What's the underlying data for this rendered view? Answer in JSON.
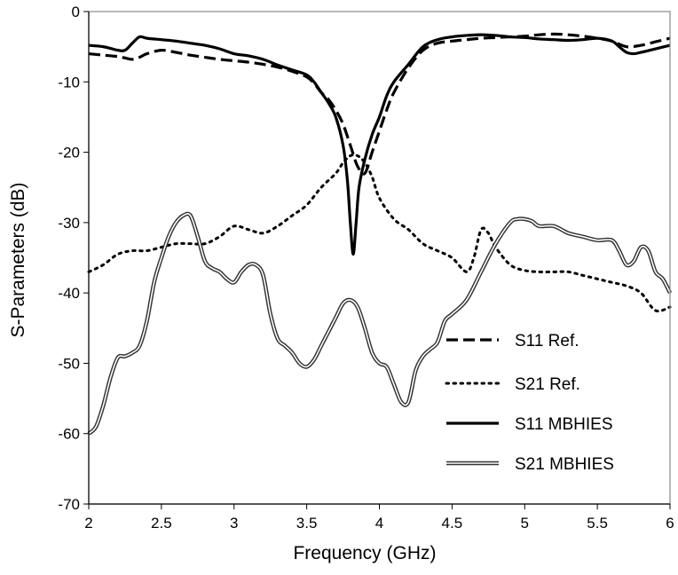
{
  "chart_data": {
    "type": "line",
    "title": "",
    "xlabel": "Frequency (GHz)",
    "ylabel": "S-Parameters (dB)",
    "xlim": [
      2,
      6
    ],
    "ylim": [
      -70,
      0
    ],
    "xticks": [
      2,
      2.5,
      3,
      3.5,
      4,
      4.5,
      5,
      5.5,
      6
    ],
    "xtick_labels": [
      "2",
      "2.5",
      "3",
      "3.5",
      "4",
      "4.5",
      "5",
      "5.5",
      "6"
    ],
    "yticks": [
      0,
      -10,
      -20,
      -30,
      -40,
      -50,
      -60,
      -70
    ],
    "ytick_labels": [
      "0",
      "-10",
      "-20",
      "-30",
      "-40",
      "-50",
      "-60",
      "-70"
    ],
    "grid": false,
    "legend_position": "bottom-right",
    "series": [
      {
        "name": "S11 Ref.",
        "style": "dashed",
        "color": "#000000",
        "x": [
          2.0,
          2.1,
          2.2,
          2.25,
          2.3,
          2.35,
          2.4,
          2.5,
          2.6,
          2.7,
          2.8,
          2.9,
          3.0,
          3.1,
          3.2,
          3.3,
          3.4,
          3.5,
          3.55,
          3.6,
          3.65,
          3.7,
          3.75,
          3.8,
          3.85,
          3.9,
          3.95,
          4.0,
          4.05,
          4.1,
          4.2,
          4.3,
          4.4,
          4.5,
          4.6,
          4.7,
          4.8,
          4.9,
          5.0,
          5.1,
          5.2,
          5.3,
          5.4,
          5.5,
          5.6,
          5.7,
          5.8,
          5.9,
          6.0
        ],
        "y": [
          -6.0,
          -6.2,
          -6.4,
          -6.6,
          -6.8,
          -6.5,
          -6.0,
          -5.5,
          -5.8,
          -6.2,
          -6.5,
          -6.8,
          -7.0,
          -7.2,
          -7.5,
          -7.9,
          -8.5,
          -9.3,
          -10.2,
          -11.5,
          -12.5,
          -14.0,
          -16.0,
          -19.0,
          -22.0,
          -23.0,
          -20.0,
          -17.0,
          -14.0,
          -11.5,
          -8.0,
          -5.5,
          -4.5,
          -4.2,
          -4.0,
          -3.8,
          -3.7,
          -3.6,
          -3.5,
          -3.3,
          -3.2,
          -3.3,
          -3.5,
          -3.8,
          -4.2,
          -5.0,
          -4.8,
          -4.3,
          -3.8
        ]
      },
      {
        "name": "S21 Ref.",
        "style": "dotted",
        "color": "#000000",
        "x": [
          2.0,
          2.1,
          2.2,
          2.3,
          2.4,
          2.5,
          2.6,
          2.7,
          2.8,
          2.9,
          3.0,
          3.1,
          3.2,
          3.3,
          3.4,
          3.5,
          3.6,
          3.7,
          3.75,
          3.8,
          3.85,
          3.9,
          3.95,
          4.0,
          4.1,
          4.2,
          4.3,
          4.4,
          4.5,
          4.6,
          4.65,
          4.7,
          4.75,
          4.8,
          4.9,
          5.0,
          5.1,
          5.2,
          5.3,
          5.4,
          5.5,
          5.6,
          5.7,
          5.8,
          5.9,
          6.0
        ],
        "y": [
          -37.0,
          -36.0,
          -34.5,
          -34.0,
          -34.0,
          -33.5,
          -33.0,
          -33.0,
          -33.0,
          -32.0,
          -30.5,
          -31.0,
          -31.5,
          -30.5,
          -29.0,
          -27.5,
          -25.0,
          -23.0,
          -21.5,
          -20.5,
          -20.5,
          -21.5,
          -23.5,
          -26.5,
          -29.5,
          -31.0,
          -33.0,
          -34.0,
          -35.0,
          -37.0,
          -35.0,
          -31.0,
          -31.5,
          -33.5,
          -36.0,
          -36.8,
          -37.0,
          -37.0,
          -37.0,
          -37.5,
          -38.0,
          -38.5,
          -39.0,
          -40.0,
          -42.5,
          -42.0
        ]
      },
      {
        "name": "S11 MBHIES",
        "style": "solid",
        "color": "#000000",
        "x": [
          2.0,
          2.1,
          2.2,
          2.25,
          2.3,
          2.35,
          2.4,
          2.5,
          2.6,
          2.7,
          2.8,
          2.9,
          3.0,
          3.1,
          3.2,
          3.3,
          3.4,
          3.5,
          3.55,
          3.6,
          3.65,
          3.7,
          3.75,
          3.78,
          3.8,
          3.82,
          3.84,
          3.86,
          3.9,
          3.95,
          4.0,
          4.05,
          4.1,
          4.2,
          4.3,
          4.4,
          4.5,
          4.6,
          4.7,
          4.8,
          4.9,
          5.0,
          5.1,
          5.2,
          5.3,
          5.4,
          5.5,
          5.6,
          5.65,
          5.7,
          5.75,
          5.8,
          5.9,
          6.0
        ],
        "y": [
          -4.8,
          -5.0,
          -5.5,
          -5.5,
          -4.5,
          -3.6,
          -3.8,
          -4.0,
          -4.2,
          -4.5,
          -4.8,
          -5.3,
          -6.0,
          -6.3,
          -6.8,
          -7.6,
          -8.3,
          -9.0,
          -10.0,
          -11.5,
          -13.0,
          -15.0,
          -19.0,
          -24.0,
          -30.0,
          -34.5,
          -30.0,
          -25.0,
          -21.0,
          -17.5,
          -15.0,
          -12.0,
          -10.0,
          -7.5,
          -5.0,
          -4.0,
          -3.6,
          -3.4,
          -3.3,
          -3.4,
          -3.6,
          -3.7,
          -3.9,
          -4.0,
          -4.1,
          -4.0,
          -3.8,
          -4.2,
          -5.0,
          -5.8,
          -6.0,
          -5.8,
          -5.3,
          -4.8
        ]
      },
      {
        "name": "S21 MBHIES",
        "style": "double",
        "color": "#000000",
        "x": [
          2.0,
          2.05,
          2.1,
          2.15,
          2.2,
          2.25,
          2.3,
          2.35,
          2.4,
          2.45,
          2.5,
          2.55,
          2.6,
          2.65,
          2.7,
          2.75,
          2.8,
          2.85,
          2.9,
          2.95,
          3.0,
          3.05,
          3.1,
          3.15,
          3.2,
          3.25,
          3.3,
          3.35,
          3.4,
          3.45,
          3.5,
          3.55,
          3.6,
          3.65,
          3.7,
          3.75,
          3.8,
          3.85,
          3.9,
          3.95,
          4.0,
          4.05,
          4.1,
          4.15,
          4.2,
          4.25,
          4.3,
          4.35,
          4.4,
          4.45,
          4.5,
          4.6,
          4.7,
          4.8,
          4.9,
          4.95,
          5.0,
          5.05,
          5.1,
          5.2,
          5.3,
          5.4,
          5.5,
          5.6,
          5.65,
          5.7,
          5.75,
          5.8,
          5.85,
          5.9,
          5.95,
          6.0
        ],
        "y": [
          -60.0,
          -59.0,
          -56.0,
          -52.0,
          -49.2,
          -49.0,
          -48.5,
          -47.5,
          -44.0,
          -38.5,
          -35.0,
          -32.0,
          -30.0,
          -29.0,
          -29.0,
          -32.0,
          -35.5,
          -36.5,
          -37.0,
          -38.0,
          -38.5,
          -37.0,
          -36.0,
          -36.0,
          -37.5,
          -43.0,
          -46.5,
          -47.5,
          -48.5,
          -50.0,
          -50.5,
          -49.5,
          -47.5,
          -45.5,
          -43.5,
          -41.5,
          -41.0,
          -42.0,
          -45.0,
          -48.5,
          -50.0,
          -50.5,
          -53.0,
          -55.5,
          -55.5,
          -51.0,
          -49.0,
          -48.0,
          -47.0,
          -44.0,
          -43.0,
          -41.0,
          -37.0,
          -33.0,
          -30.0,
          -29.5,
          -29.5,
          -29.8,
          -30.5,
          -30.5,
          -31.5,
          -32.0,
          -32.5,
          -32.5,
          -34.0,
          -36.0,
          -35.5,
          -33.5,
          -34.0,
          -37.0,
          -38.0,
          -40.0
        ]
      }
    ]
  }
}
